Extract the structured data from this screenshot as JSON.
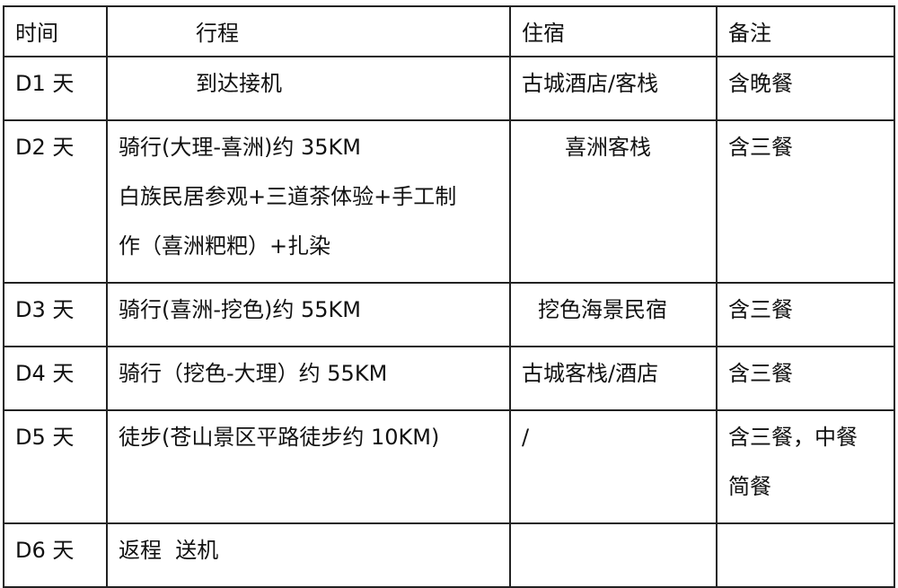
{
  "header": {
    "time": "时间",
    "itinerary": "行程",
    "lodging": "住宿",
    "notes": "备注"
  },
  "rows": [
    {
      "day": "D1 天",
      "itinerary": [
        "到达接机"
      ],
      "lodging": "古城酒店/客栈",
      "notes": [
        "含晚餐"
      ]
    },
    {
      "day": "D2 天",
      "itinerary": [
        "骑行(大理-喜洲)约 35KM",
        "白族民居参观+三道茶体验+手工制",
        "作（喜洲粑粑）+扎染"
      ],
      "lodging": "喜洲客栈",
      "notes": [
        "含三餐"
      ]
    },
    {
      "day": "D3 天",
      "itinerary": [
        "骑行(喜洲-挖色)约 55KM"
      ],
      "lodging": "挖色海景民宿",
      "notes": [
        "含三餐"
      ]
    },
    {
      "day": "D4 天",
      "itinerary": [
        "骑行（挖色-大理）约 55KM"
      ],
      "lodging": "古城客栈/酒店",
      "notes": [
        "含三餐"
      ]
    },
    {
      "day": "D5 天",
      "itinerary": [
        "徒步(苍山景区平路徒步约 10KM)"
      ],
      "lodging": "/",
      "notes": [
        "含三餐，中餐",
        "简餐"
      ]
    },
    {
      "day": "D6 天",
      "itinerary": [
        "返程  送机"
      ],
      "lodging": "",
      "notes": []
    }
  ]
}
